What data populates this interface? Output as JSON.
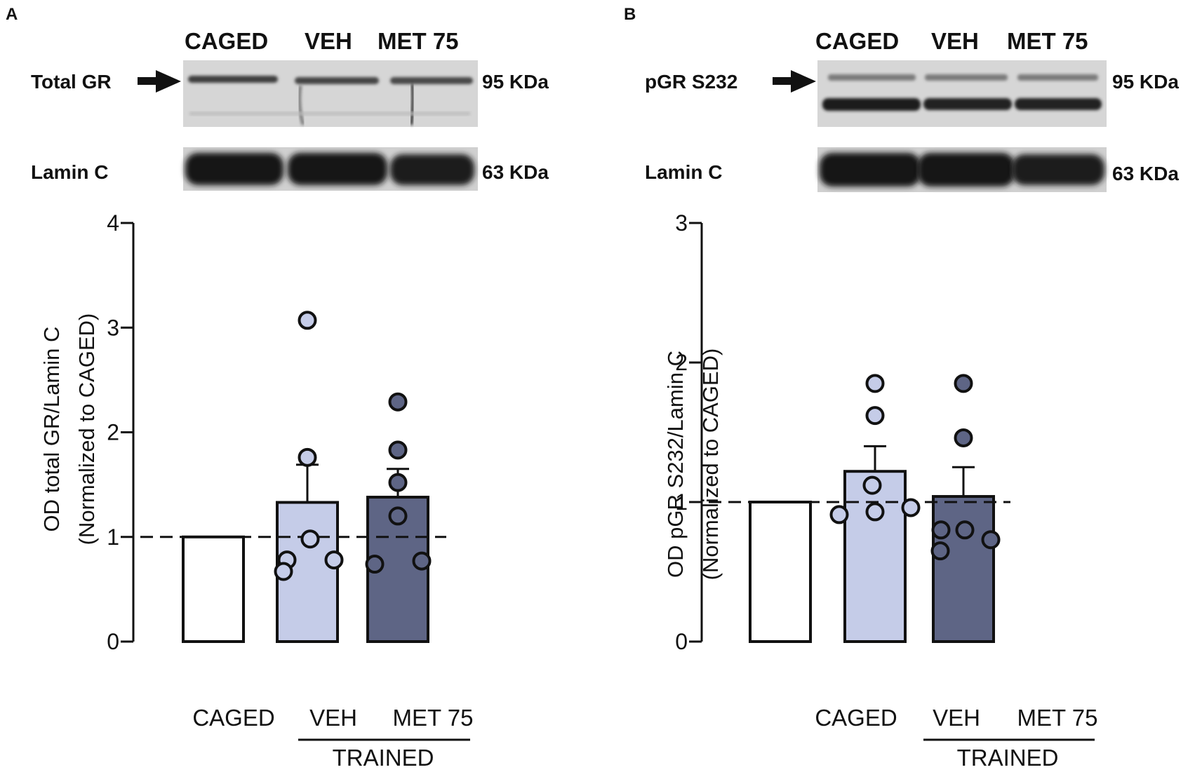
{
  "colors": {
    "caged_fill": "#ffffff",
    "veh_fill": "#c5cce8",
    "met_fill": "#5e6585",
    "veh_point": "#c5cce8",
    "met_point": "#5e6585",
    "blot_bg": "#d6d6d6",
    "band": "#1a1a1a"
  },
  "panels": [
    {
      "letter": "A",
      "blot": {
        "lanes": [
          "CAGED",
          "VEH",
          "MET 75"
        ],
        "top_label": "Total GR",
        "top_kda": "95 KDa",
        "bottom_label": "Lamin C",
        "bottom_kda": "63 KDa"
      }
    },
    {
      "letter": "B",
      "blot": {
        "lanes": [
          "CAGED",
          "VEH",
          "MET 75"
        ],
        "top_label": "pGR S232",
        "top_kda": "95 KDa",
        "bottom_label": "Lamin C",
        "bottom_kda": "63 KDa"
      }
    }
  ],
  "chart_data": [
    {
      "type": "bar",
      "categories": [
        "CAGED",
        "VEH",
        "MET 75"
      ],
      "group_label": "TRAINED",
      "ylabel_line1": "OD total GR/Lamin C",
      "ylabel_line2": "(Normalized to CAGED)",
      "ylim": [
        0,
        4
      ],
      "yticks": [
        "0",
        "1",
        "2",
        "3",
        "4"
      ],
      "reference_line": 1,
      "values": [
        1.0,
        1.33,
        1.38
      ],
      "sem": [
        0,
        0.36,
        0.27
      ],
      "points": [
        [],
        [
          3.07,
          1.76,
          0.98,
          0.78,
          0.78,
          0.67
        ],
        [
          2.29,
          1.83,
          1.52,
          1.2,
          0.77,
          0.74
        ]
      ]
    },
    {
      "type": "bar",
      "categories": [
        "CAGED",
        "VEH",
        "MET 75"
      ],
      "group_label": "TRAINED",
      "ylabel_line1": "OD pGR S232/Lamin C",
      "ylabel_line2": "(Normalized to CAGED)",
      "ylim": [
        0,
        3
      ],
      "yticks": [
        "0",
        "1",
        "2",
        "3"
      ],
      "reference_line": 1,
      "values": [
        1.0,
        1.22,
        1.04
      ],
      "sem": [
        0,
        0.18,
        0.21
      ],
      "points": [
        [],
        [
          1.85,
          1.62,
          1.12,
          0.96,
          0.93,
          0.91
        ],
        [
          1.85,
          1.46,
          0.8,
          0.8,
          0.73,
          0.65
        ]
      ]
    }
  ]
}
